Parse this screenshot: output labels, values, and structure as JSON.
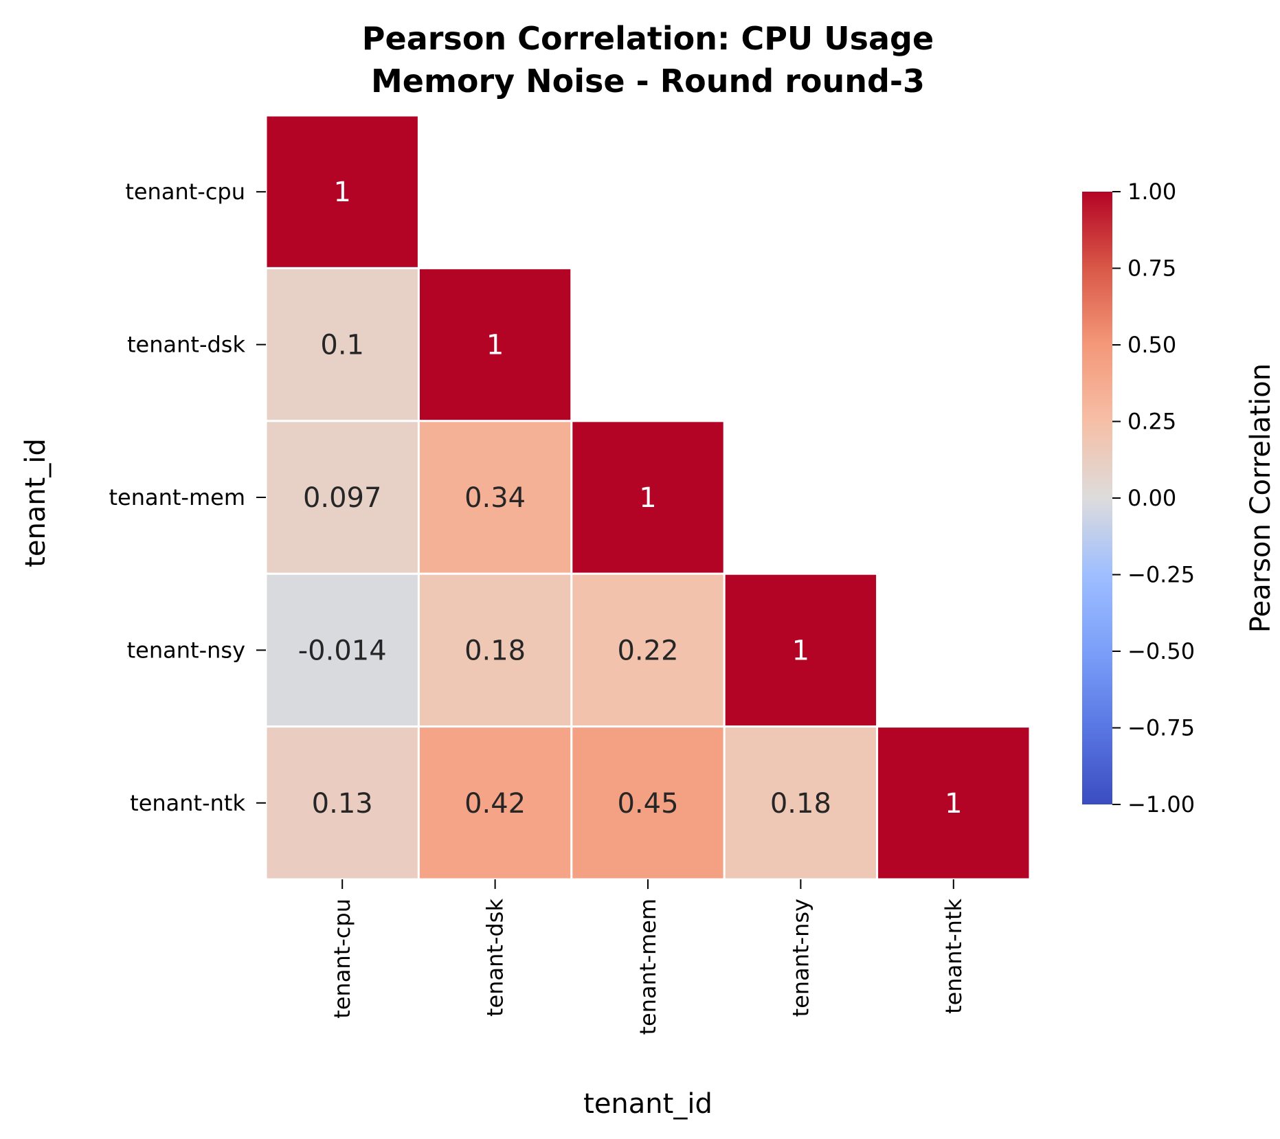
{
  "chart_data": {
    "type": "heatmap",
    "title_lines": [
      "Pearson Correlation: CPU Usage",
      "Memory Noise - Round round-3"
    ],
    "xlabel": "tenant_id",
    "ylabel": "tenant_id",
    "x_categories": [
      "tenant-cpu",
      "tenant-dsk",
      "tenant-mem",
      "tenant-nsy",
      "tenant-ntk"
    ],
    "y_categories": [
      "tenant-cpu",
      "tenant-dsk",
      "tenant-mem",
      "tenant-nsy",
      "tenant-ntk"
    ],
    "mask": "upper-triangle",
    "cells": [
      {
        "row": 0,
        "col": 0,
        "value": 1,
        "label": "1"
      },
      {
        "row": 1,
        "col": 0,
        "value": 0.1,
        "label": "0.1"
      },
      {
        "row": 1,
        "col": 1,
        "value": 1,
        "label": "1"
      },
      {
        "row": 2,
        "col": 0,
        "value": 0.097,
        "label": "0.097"
      },
      {
        "row": 2,
        "col": 1,
        "value": 0.34,
        "label": "0.34"
      },
      {
        "row": 2,
        "col": 2,
        "value": 1,
        "label": "1"
      },
      {
        "row": 3,
        "col": 0,
        "value": -0.014,
        "label": "-0.014"
      },
      {
        "row": 3,
        "col": 1,
        "value": 0.18,
        "label": "0.18"
      },
      {
        "row": 3,
        "col": 2,
        "value": 0.22,
        "label": "0.22"
      },
      {
        "row": 3,
        "col": 3,
        "value": 1,
        "label": "1"
      },
      {
        "row": 4,
        "col": 0,
        "value": 0.13,
        "label": "0.13"
      },
      {
        "row": 4,
        "col": 1,
        "value": 0.42,
        "label": "0.42"
      },
      {
        "row": 4,
        "col": 2,
        "value": 0.45,
        "label": "0.45"
      },
      {
        "row": 4,
        "col": 3,
        "value": 0.18,
        "label": "0.18"
      },
      {
        "row": 4,
        "col": 4,
        "value": 1,
        "label": "1"
      }
    ],
    "colorbar": {
      "label": "Pearson Correlation",
      "colormap": "coolwarm",
      "range": [
        -1,
        1
      ],
      "ticks": [
        "1.00",
        "0.75",
        "0.50",
        "0.25",
        "0.00",
        "−0.25",
        "−0.50",
        "−0.75",
        "−1.00"
      ],
      "tick_values": [
        1,
        0.75,
        0.5,
        0.25,
        0,
        -0.25,
        -0.5,
        -0.75,
        -1
      ]
    },
    "colors": {
      "cell_border": "#ffffff",
      "light_text": "#ffffff",
      "dark_text": "#262626"
    }
  }
}
